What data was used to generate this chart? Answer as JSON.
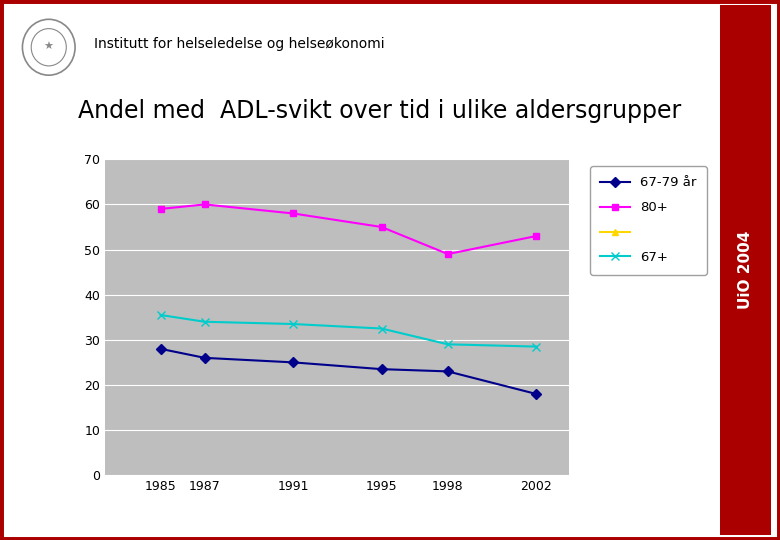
{
  "title_institution": "Institutt for helseledelse og helseøkonomi",
  "title_chart": "Andel med  ADL-svikt over tid i ulike aldersgrupper",
  "sidebar_text": "UiO 2004",
  "years": [
    1985,
    1987,
    1991,
    1995,
    1998,
    2002
  ],
  "series": [
    {
      "label": "67-79 år",
      "color": "#00008B",
      "marker": "D",
      "markersize": 5,
      "values": [
        28,
        26,
        25,
        23.5,
        23,
        18
      ]
    },
    {
      "label": "80+",
      "color": "#FF00FF",
      "marker": "s",
      "markersize": 5,
      "values": [
        59,
        60,
        58,
        55,
        49,
        53
      ]
    },
    {
      "label": "",
      "color": "#FFD700",
      "marker": "^",
      "markersize": 5,
      "values": [
        null,
        null,
        null,
        null,
        null,
        null
      ]
    },
    {
      "label": "67+",
      "color": "#00CCCC",
      "marker": "x",
      "markersize": 6,
      "values": [
        35.5,
        34,
        33.5,
        32.5,
        29,
        28.5
      ]
    }
  ],
  "ylim": [
    0,
    70
  ],
  "yticks": [
    0,
    10,
    20,
    30,
    40,
    50,
    60,
    70
  ],
  "plot_bg_color": "#BEBEBE",
  "outer_bg_color": "#FFFFFF",
  "border_color": "#AA0000",
  "sidebar_color": "#AA0000",
  "legend_labels": [
    "67-79 år",
    "80+",
    "",
    "67+"
  ],
  "legend_colors": [
    "#00008B",
    "#FF00FF",
    "#FFD700",
    "#00CCCC"
  ],
  "legend_markers": [
    "D",
    "s",
    "^",
    "x"
  ],
  "legend_markersizes": [
    5,
    5,
    5,
    6
  ]
}
